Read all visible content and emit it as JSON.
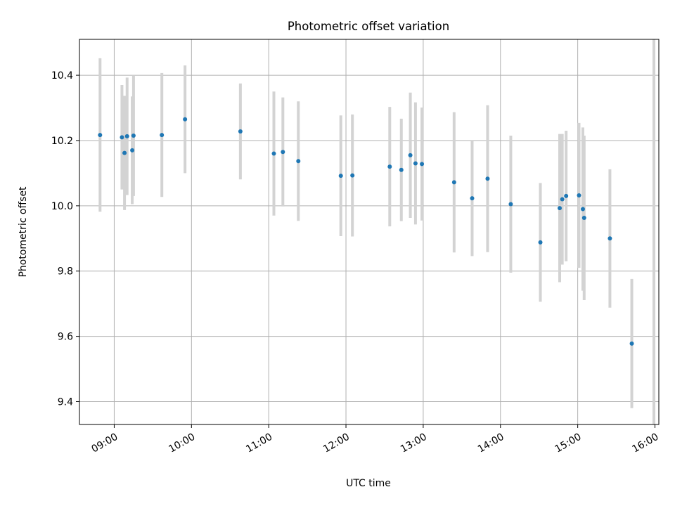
{
  "chart_data": {
    "type": "scatter",
    "title": "Photometric offset variation",
    "xlabel": "UTC time",
    "ylabel": "Photometric offset",
    "x_unit": "UTC time (HH:MM)",
    "xlim": [
      "08:33",
      "16:03"
    ],
    "ylim": [
      9.33,
      10.51
    ],
    "x_ticks": [
      "09:00",
      "10:00",
      "11:00",
      "12:00",
      "13:00",
      "14:00",
      "15:00",
      "16:00"
    ],
    "y_ticks": [
      9.4,
      9.6,
      9.8,
      10.0,
      10.2,
      10.4
    ],
    "y_tick_labels": [
      "9.4",
      "9.6",
      "9.8",
      "10.0",
      "10.2",
      "10.4"
    ],
    "grid": true,
    "colors": {
      "point": "#1f77b4",
      "errorbar": "#d3d3d3",
      "grid": "#b0b0b0"
    },
    "series": [
      {
        "points": [
          {
            "x": "08:49",
            "y": 10.217,
            "yerr": 0.235
          },
          {
            "x": "09:06",
            "y": 10.21,
            "yerr": 0.16
          },
          {
            "x": "09:08",
            "y": 10.162,
            "yerr": 0.175
          },
          {
            "x": "09:10",
            "y": 10.213,
            "yerr": 0.18
          },
          {
            "x": "09:14",
            "y": 10.17,
            "yerr": 0.165
          },
          {
            "x": "09:15",
            "y": 10.215,
            "yerr": 0.185
          },
          {
            "x": "09:37",
            "y": 10.217,
            "yerr": 0.19
          },
          {
            "x": "09:55",
            "y": 10.265,
            "yerr": 0.165
          },
          {
            "x": "10:38",
            "y": 10.228,
            "yerr": 0.147
          },
          {
            "x": "11:04",
            "y": 10.16,
            "yerr": 0.19
          },
          {
            "x": "11:11",
            "y": 10.165,
            "yerr": 0.167
          },
          {
            "x": "11:23",
            "y": 10.137,
            "yerr": 0.183
          },
          {
            "x": "11:56",
            "y": 10.092,
            "yerr": 0.185
          },
          {
            "x": "12:05",
            "y": 10.093,
            "yerr": 0.187
          },
          {
            "x": "12:34",
            "y": 10.12,
            "yerr": 0.183
          },
          {
            "x": "12:43",
            "y": 10.11,
            "yerr": 0.157
          },
          {
            "x": "12:50",
            "y": 10.155,
            "yerr": 0.192
          },
          {
            "x": "12:54",
            "y": 10.13,
            "yerr": 0.187
          },
          {
            "x": "12:59",
            "y": 10.128,
            "yerr": 0.173
          },
          {
            "x": "13:24",
            "y": 10.072,
            "yerr": 0.215
          },
          {
            "x": "13:38",
            "y": 10.023,
            "yerr": 0.177
          },
          {
            "x": "13:50",
            "y": 10.083,
            "yerr": 0.225
          },
          {
            "x": "14:08",
            "y": 10.005,
            "yerr": 0.21
          },
          {
            "x": "14:31",
            "y": 9.888,
            "yerr": 0.182
          },
          {
            "x": "14:46",
            "y": 9.993,
            "yerr": 0.227
          },
          {
            "x": "14:48",
            "y": 10.02,
            "yerr": 0.2
          },
          {
            "x": "14:51",
            "y": 10.03,
            "yerr": 0.2
          },
          {
            "x": "15:01",
            "y": 10.032,
            "yerr": 0.222
          },
          {
            "x": "15:04",
            "y": 9.99,
            "yerr": 0.25
          },
          {
            "x": "15:05",
            "y": 9.963,
            "yerr": 0.252
          },
          {
            "x": "15:25",
            "y": 9.9,
            "yerr": 0.212
          },
          {
            "x": "15:42",
            "y": 9.578,
            "yerr": 0.198
          }
        ]
      }
    ]
  }
}
